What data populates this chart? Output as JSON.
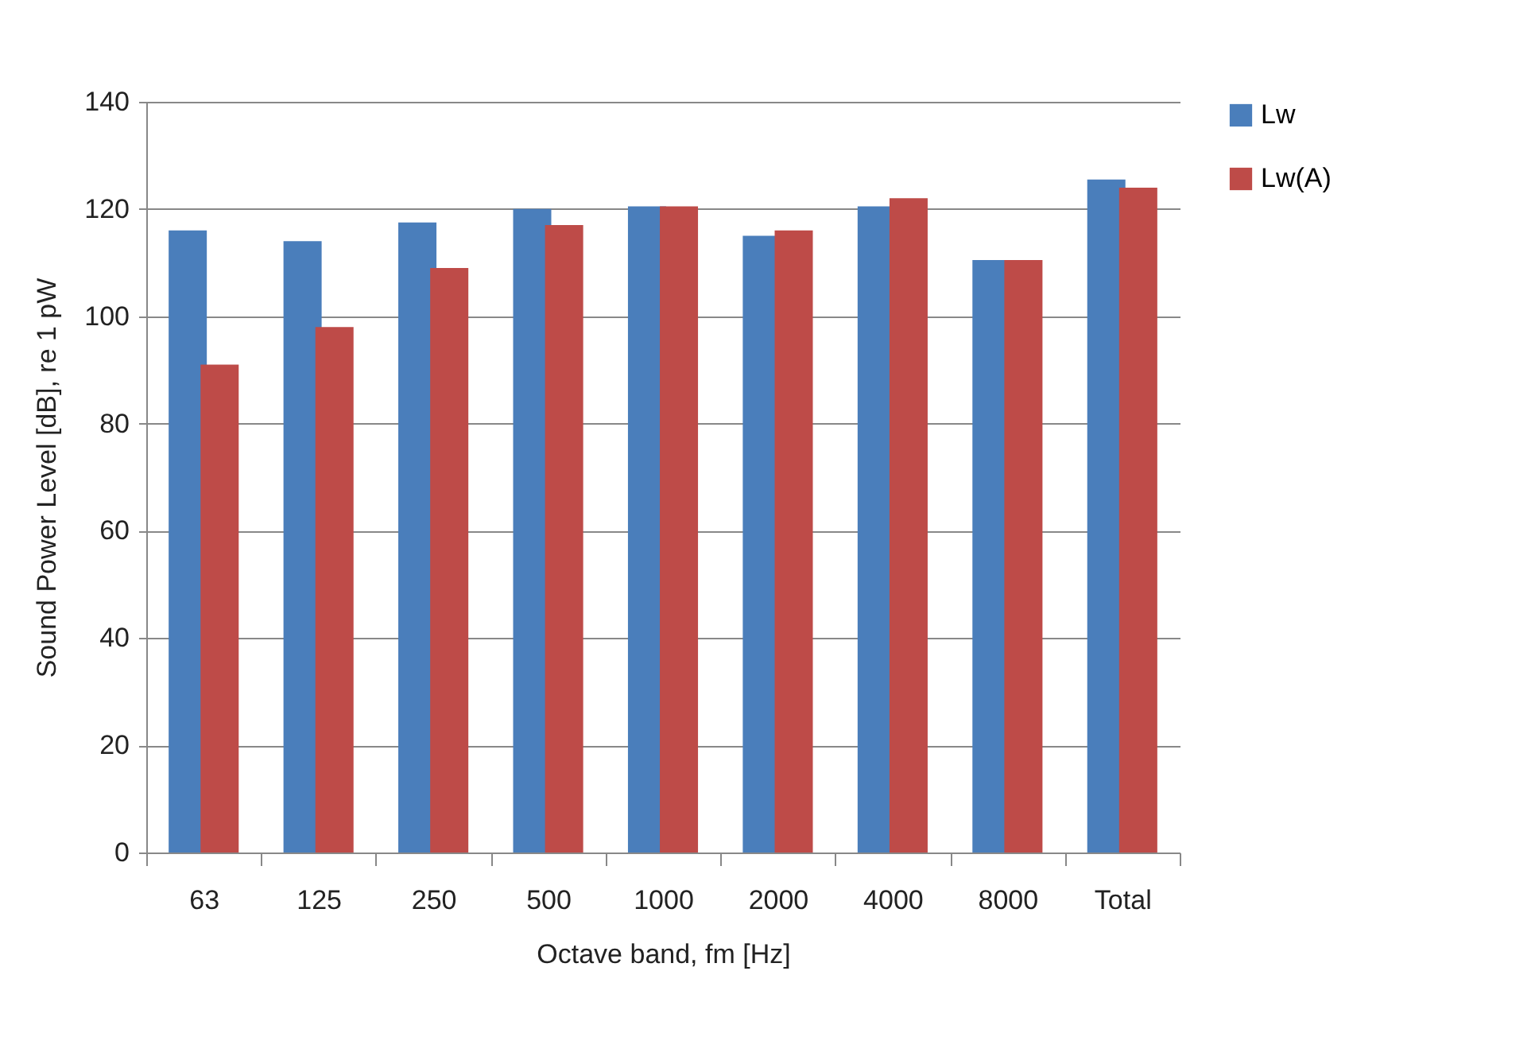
{
  "chart_data": {
    "type": "bar",
    "xlabel": "Octave band, fm [Hz]",
    "ylabel": "Sound Power Level [dB], re 1 pW",
    "categories": [
      "63",
      "125",
      "250",
      "500",
      "1000",
      "2000",
      "4000",
      "8000",
      "Total"
    ],
    "series": [
      {
        "name": "Lw",
        "color": "#4a7ebb",
        "values": [
          116,
          114,
          117.5,
          120,
          120.5,
          115,
          120.5,
          110.5,
          125.5
        ]
      },
      {
        "name": "Lw(A)",
        "color": "#be4b48",
        "values": [
          91,
          98,
          109,
          117,
          120.5,
          116,
          122,
          110.5,
          124
        ]
      }
    ],
    "ylim": [
      0,
      140
    ],
    "yticks": [
      0,
      20,
      40,
      60,
      80,
      100,
      120,
      140
    ],
    "grid": "y",
    "legend": "right"
  }
}
